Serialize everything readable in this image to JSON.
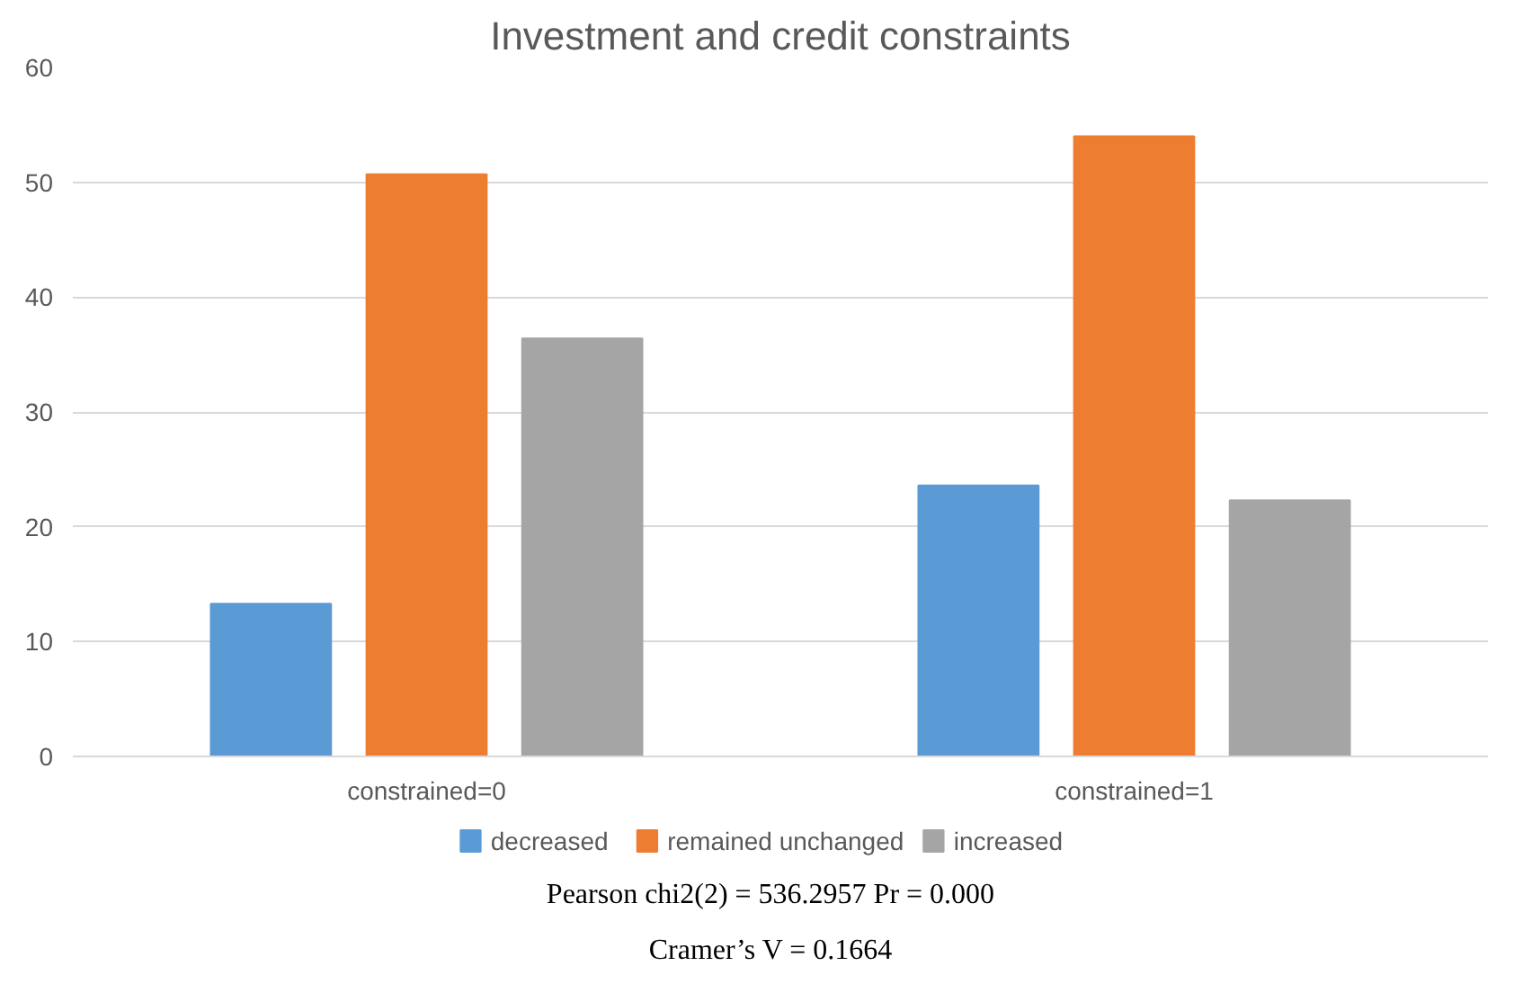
{
  "chart_data": {
    "type": "bar",
    "title": "Investment and credit constraints",
    "categories": [
      "constrained=0",
      "constrained=1"
    ],
    "series": [
      {
        "name": "decreased",
        "color": "#5b9bd5",
        "values": [
          13.3,
          23.6
        ]
      },
      {
        "name": "remained unchanged",
        "color": "#ed7d31",
        "values": [
          50.7,
          54.0
        ]
      },
      {
        "name": "increased",
        "color": "#a5a5a5",
        "values": [
          36.4,
          22.3
        ]
      }
    ],
    "ylim": [
      0,
      60
    ],
    "yticks": [
      0,
      10,
      20,
      30,
      40,
      50,
      60
    ],
    "grid": "y",
    "legend": "bottom",
    "annotations": [
      "Pearson chi2(2) = 536.2957   Pr = 0.000",
      "Cramer’s V =   0.1664"
    ]
  }
}
